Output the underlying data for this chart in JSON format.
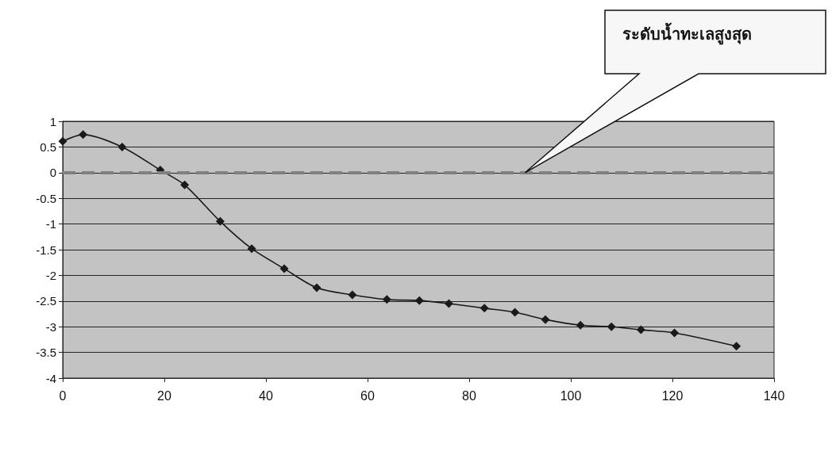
{
  "chart_data": {
    "type": "line",
    "x": [
      0,
      4,
      11.7,
      19.2,
      24,
      31,
      37.2,
      43.6,
      50,
      57,
      63.8,
      70.2,
      76,
      83,
      89,
      95,
      101.9,
      108,
      113.8,
      120.4,
      132.6
    ],
    "series": [
      {
        "color": "#1a1a1a",
        "values": [
          0.61,
          0.74,
          0.5,
          0.05,
          -0.24,
          -0.95,
          -1.48,
          -1.87,
          -2.24,
          -2.38,
          -2.47,
          -2.49,
          -2.55,
          -2.64,
          -2.72,
          -2.86,
          -2.97,
          -3.0,
          -3.06,
          -3.12,
          -3.38
        ]
      }
    ],
    "xlim": [
      0,
      140
    ],
    "xticks": [
      0,
      20,
      40,
      60,
      80,
      100,
      120,
      140
    ],
    "ylim": [
      -4,
      1
    ],
    "yticks": [
      -4,
      -3.5,
      -3,
      -2.5,
      -2,
      -1.5,
      -1,
      -0.5,
      0,
      0.5,
      1
    ],
    "grid": "y",
    "marker": "diamond",
    "line_style": "solid",
    "ref_lines": [
      {
        "axis": "y",
        "value": 0,
        "color": "#808080",
        "line_style": "dashed"
      }
    ],
    "annotations": [
      "ระดับน้ำทะเลสูงสุด"
    ]
  }
}
